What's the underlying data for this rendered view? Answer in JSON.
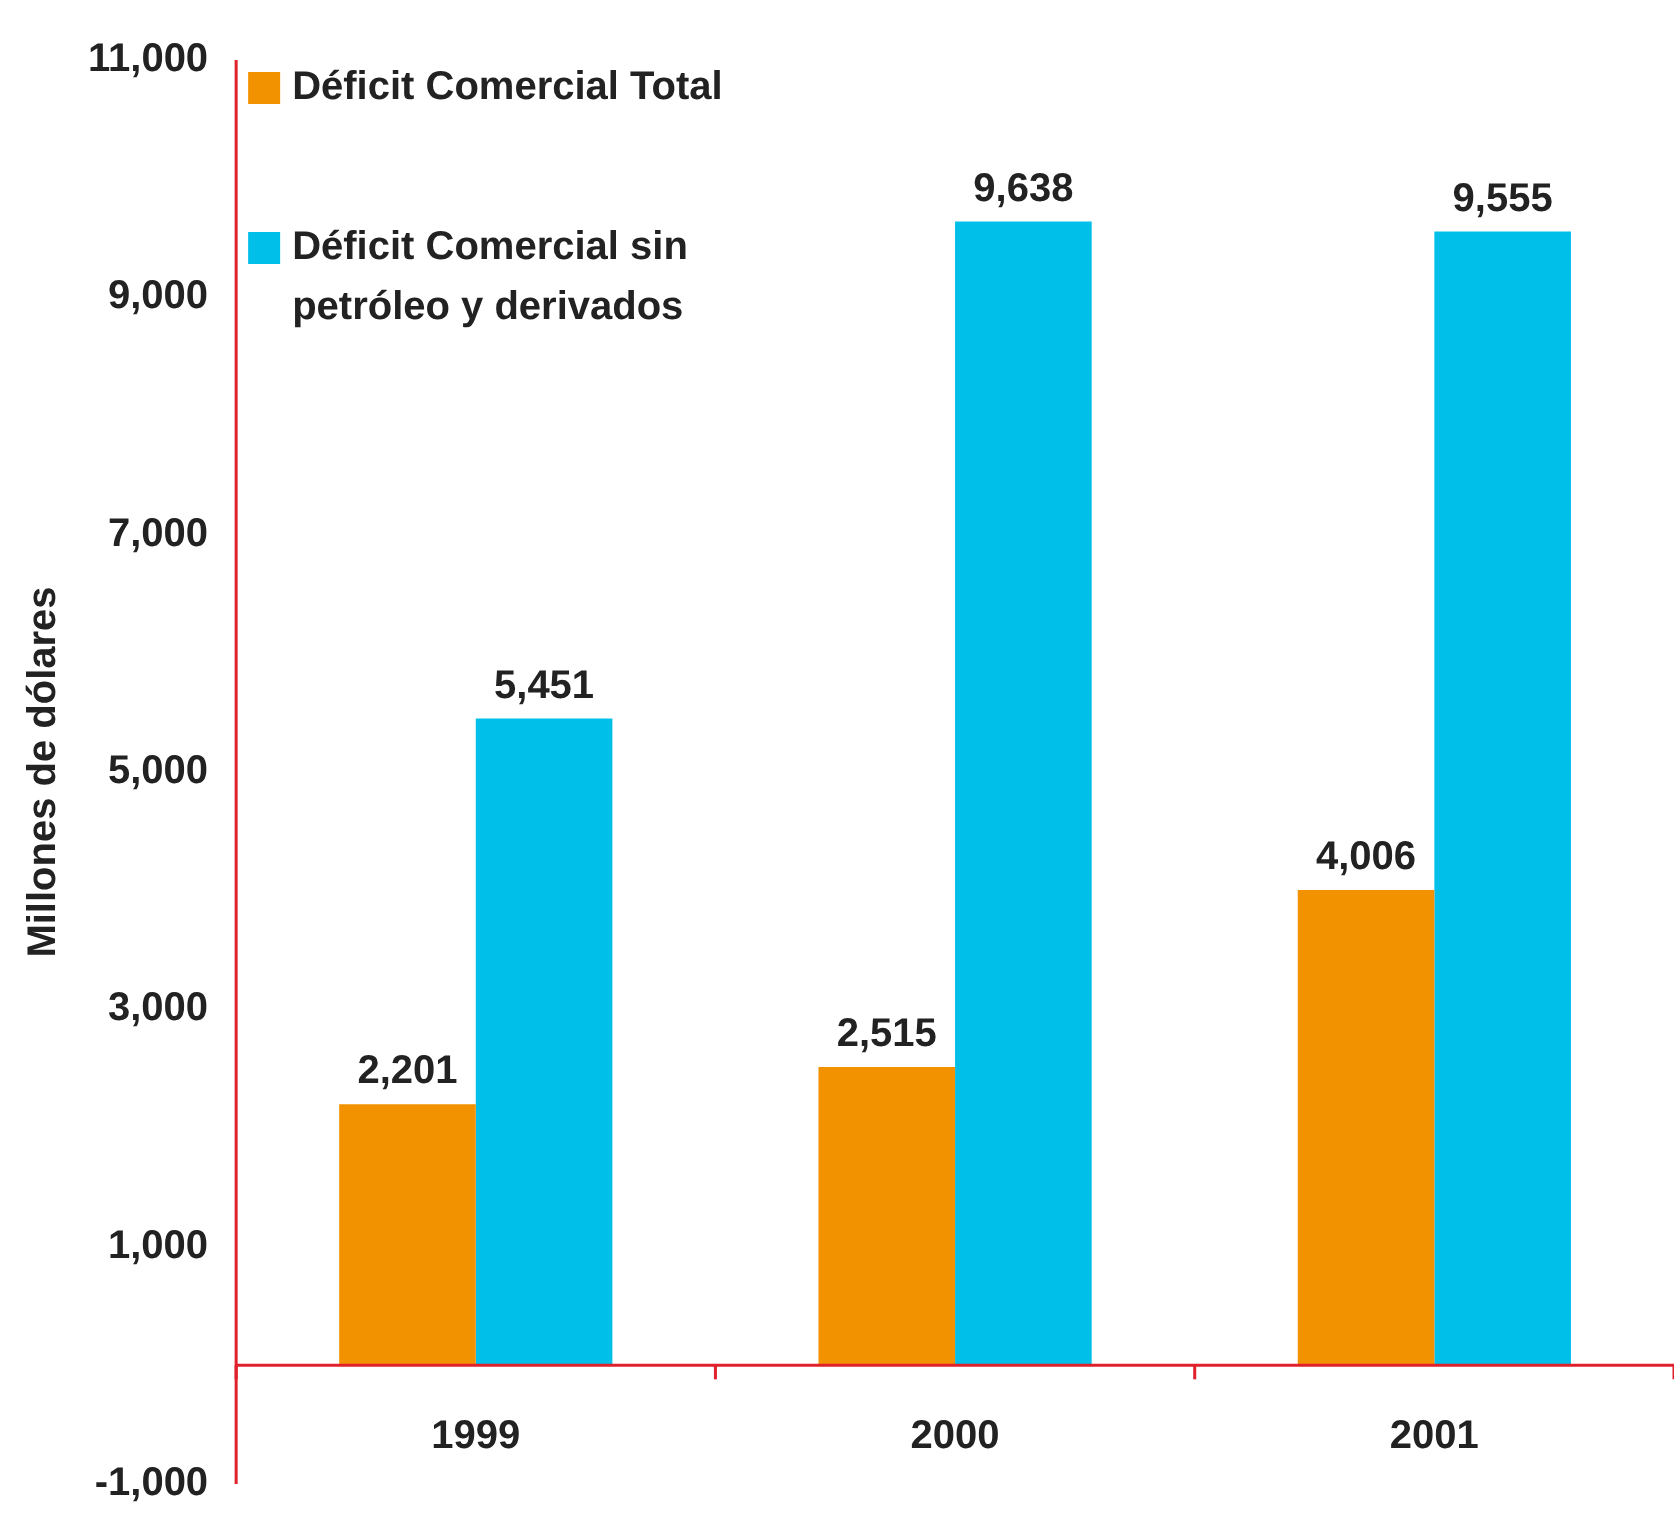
{
  "chart_data": {
    "type": "bar",
    "ylabel": "Millones de dólares",
    "categories": [
      "1999",
      "2000",
      "2001"
    ],
    "series": [
      {
        "name": "Déficit Comercial Total",
        "color": "#f39200",
        "values": [
          2201,
          2515,
          4006
        ],
        "value_labels": [
          "2,201",
          "2,515",
          "4,006"
        ]
      },
      {
        "name": "Déficit Comercial sin petróleo y derivados",
        "color": "#00bfe8",
        "values": [
          5451,
          9638,
          9555
        ],
        "value_labels": [
          "5,451",
          "9,638",
          "9,555"
        ]
      }
    ],
    "ylim": [
      -1000,
      11000
    ],
    "yticks": [
      {
        "value": -1000,
        "label": "-1,000"
      },
      {
        "value": 1000,
        "label": "1,000"
      },
      {
        "value": 3000,
        "label": "3,000"
      },
      {
        "value": 5000,
        "label": "5,000"
      },
      {
        "value": 7000,
        "label": "7,000"
      },
      {
        "value": 9000,
        "label": "9,000"
      },
      {
        "value": 11000,
        "label": "11,000"
      }
    ],
    "grid": false,
    "legend": "top left"
  }
}
